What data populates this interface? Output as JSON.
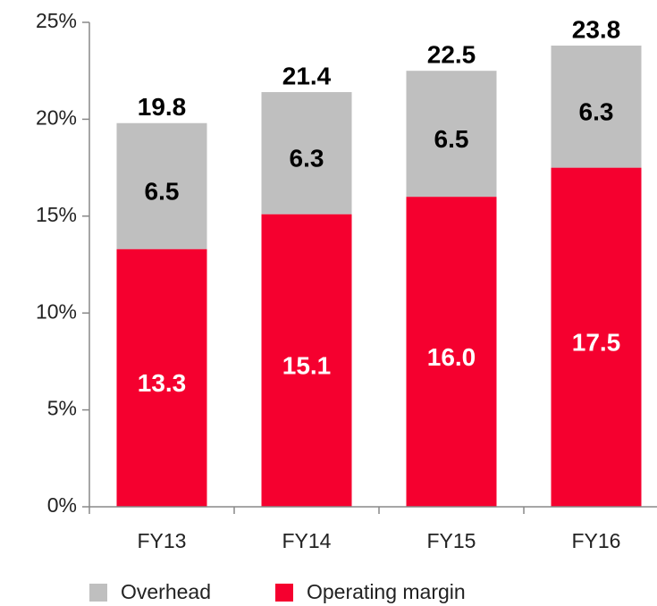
{
  "chart_data": {
    "type": "stacked_bar",
    "categories": [
      "FY13",
      "FY14",
      "FY15",
      "FY16"
    ],
    "series": [
      {
        "name": "Operating margin",
        "color": "#f5002f",
        "values": [
          13.3,
          15.1,
          16.0,
          17.5
        ],
        "value_labels": [
          "13.3",
          "15.1",
          "16.0",
          "17.5"
        ]
      },
      {
        "name": "Overhead",
        "color": "#bfbfbf",
        "values": [
          6.5,
          6.3,
          6.5,
          6.3
        ]
      }
    ],
    "totals": [
      19.8,
      21.4,
      22.5,
      23.8
    ],
    "ylim": [
      0,
      25
    ],
    "yticks": [
      {
        "value": 0,
        "label": "0%"
      },
      {
        "value": 5,
        "label": "5%"
      },
      {
        "value": 10,
        "label": "10%"
      },
      {
        "value": 15,
        "label": "15%"
      },
      {
        "value": 20,
        "label": "20%"
      },
      {
        "value": 25,
        "label": "25%"
      }
    ],
    "legend_order": [
      1,
      0
    ]
  }
}
